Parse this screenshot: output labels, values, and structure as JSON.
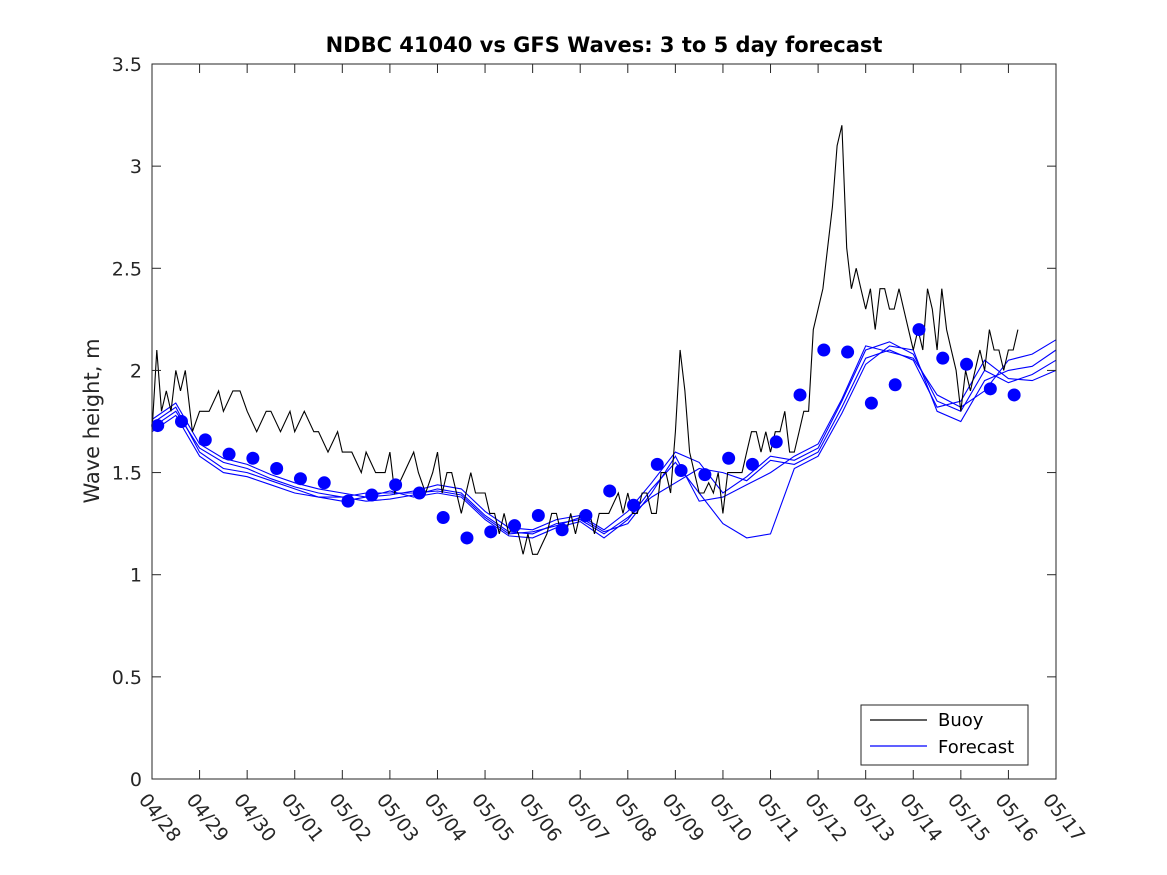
{
  "chart_data": {
    "type": "line",
    "title": "NDBC 41040 vs GFS Waves: 3 to 5 day forecast",
    "ylabel": "Wave height, m",
    "xlabel": "",
    "xlim": [
      0,
      19
    ],
    "ylim": [
      0,
      3.5
    ],
    "x_tick_labels": [
      "04/28",
      "04/29",
      "04/30",
      "05/01",
      "05/02",
      "05/03",
      "05/04",
      "05/05",
      "05/06",
      "05/07",
      "05/08",
      "05/09",
      "05/10",
      "05/11",
      "05/12",
      "05/13",
      "05/14",
      "05/15",
      "05/16",
      "05/17"
    ],
    "y_ticks": [
      0,
      0.5,
      1,
      1.5,
      2,
      2.5,
      3,
      3.5
    ],
    "y_tick_labels": [
      "0",
      "0.5",
      "1",
      "1.5",
      "2",
      "2.5",
      "3",
      "3.5"
    ],
    "grid": false,
    "legend": {
      "position": "bottom-right",
      "entries": [
        "Buoy",
        "Forecast"
      ]
    },
    "colors": {
      "buoy": "#000000",
      "forecast": "#0000ff"
    },
    "series": [
      {
        "name": "Buoy",
        "x": [
          0.0,
          0.1,
          0.2,
          0.3,
          0.4,
          0.5,
          0.6,
          0.7,
          0.85,
          1.0,
          1.2,
          1.4,
          1.5,
          1.7,
          1.85,
          2.0,
          2.2,
          2.4,
          2.5,
          2.7,
          2.9,
          3.0,
          3.2,
          3.4,
          3.5,
          3.7,
          3.9,
          4.0,
          4.2,
          4.4,
          4.5,
          4.7,
          4.9,
          5.0,
          5.1,
          5.3,
          5.5,
          5.6,
          5.75,
          5.9,
          6.0,
          6.1,
          6.2,
          6.3,
          6.5,
          6.6,
          6.7,
          6.8,
          7.0,
          7.1,
          7.2,
          7.3,
          7.4,
          7.5,
          7.6,
          7.7,
          7.8,
          7.9,
          8.0,
          8.1,
          8.2,
          8.3,
          8.4,
          8.5,
          8.6,
          8.7,
          8.8,
          8.9,
          9.0,
          9.2,
          9.3,
          9.4,
          9.5,
          9.6,
          9.8,
          9.9,
          10.0,
          10.1,
          10.2,
          10.3,
          10.4,
          10.5,
          10.6,
          10.7,
          10.8,
          10.9,
          11.0,
          11.1,
          11.2,
          11.3,
          11.4,
          11.5,
          11.6,
          11.7,
          11.8,
          11.9,
          12.0,
          12.1,
          12.2,
          12.3,
          12.4,
          12.5,
          12.6,
          12.7,
          12.8,
          12.9,
          13.0,
          13.1,
          13.2,
          13.3,
          13.4,
          13.5,
          13.6,
          13.7,
          13.8,
          13.9,
          14.0,
          14.1,
          14.2,
          14.3,
          14.4,
          14.5,
          14.6,
          14.7,
          14.8,
          14.9,
          15.0,
          15.1,
          15.2,
          15.3,
          15.4,
          15.5,
          15.6,
          15.7,
          15.8,
          15.9,
          16.0,
          16.1,
          16.2,
          16.3,
          16.4,
          16.5,
          16.6,
          16.7,
          16.8,
          16.9,
          17.0,
          17.1,
          17.2,
          17.3,
          17.4,
          17.5,
          17.6,
          17.7,
          17.8,
          17.9,
          18.0,
          18.1,
          18.2
        ],
        "values": [
          1.7,
          2.1,
          1.8,
          1.9,
          1.8,
          2.0,
          1.9,
          2.0,
          1.7,
          1.8,
          1.8,
          1.9,
          1.8,
          1.9,
          1.9,
          1.8,
          1.7,
          1.8,
          1.8,
          1.7,
          1.8,
          1.7,
          1.8,
          1.7,
          1.7,
          1.6,
          1.7,
          1.6,
          1.6,
          1.5,
          1.6,
          1.5,
          1.5,
          1.6,
          1.4,
          1.5,
          1.6,
          1.5,
          1.4,
          1.5,
          1.6,
          1.4,
          1.5,
          1.5,
          1.3,
          1.4,
          1.5,
          1.4,
          1.4,
          1.3,
          1.3,
          1.2,
          1.3,
          1.2,
          1.25,
          1.2,
          1.1,
          1.2,
          1.1,
          1.1,
          1.15,
          1.2,
          1.3,
          1.3,
          1.2,
          1.2,
          1.3,
          1.2,
          1.3,
          1.3,
          1.2,
          1.3,
          1.3,
          1.3,
          1.4,
          1.3,
          1.4,
          1.3,
          1.3,
          1.4,
          1.4,
          1.3,
          1.3,
          1.5,
          1.5,
          1.4,
          1.7,
          2.1,
          1.9,
          1.6,
          1.5,
          1.4,
          1.4,
          1.45,
          1.4,
          1.5,
          1.3,
          1.5,
          1.5,
          1.5,
          1.5,
          1.6,
          1.7,
          1.7,
          1.6,
          1.7,
          1.6,
          1.7,
          1.7,
          1.8,
          1.6,
          1.6,
          1.7,
          1.8,
          1.8,
          2.2,
          2.3,
          2.4,
          2.6,
          2.8,
          3.1,
          3.2,
          2.6,
          2.4,
          2.5,
          2.4,
          2.3,
          2.4,
          2.2,
          2.4,
          2.4,
          2.3,
          2.3,
          2.4,
          2.3,
          2.2,
          2.1,
          2.2,
          2.1,
          2.4,
          2.3,
          2.1,
          2.4,
          2.2,
          2.1,
          2.0,
          1.8,
          2.0,
          1.9,
          2.0,
          2.1,
          2.0,
          2.2,
          2.1,
          2.1,
          2.0,
          2.1,
          2.1,
          2.2
        ]
      },
      {
        "name": "Forecast",
        "x": [
          0.0,
          0.5,
          1.0,
          1.5,
          2.0,
          2.5,
          3.0,
          3.5,
          4.0,
          4.5,
          5.0,
          5.5,
          6.0,
          6.5,
          7.0,
          7.5,
          8.0,
          8.5,
          9.0,
          9.5,
          10.0,
          10.5,
          11.0,
          11.5,
          12.0,
          12.5,
          13.0,
          13.5,
          14.0,
          14.5,
          15.0,
          15.5,
          16.0,
          16.5,
          17.0,
          17.5,
          18.0,
          18.5,
          19.0
        ],
        "values": [
          1.72,
          1.8,
          1.62,
          1.55,
          1.52,
          1.47,
          1.43,
          1.4,
          1.38,
          1.36,
          1.37,
          1.39,
          1.42,
          1.4,
          1.29,
          1.21,
          1.2,
          1.25,
          1.27,
          1.2,
          1.28,
          1.38,
          1.45,
          1.52,
          1.5,
          1.46,
          1.56,
          1.54,
          1.6,
          1.82,
          2.06,
          2.1,
          2.05,
          1.82,
          1.85,
          2.05,
          1.96,
          1.95,
          2.0
        ]
      },
      {
        "name": "",
        "x": [
          0.0,
          0.5,
          1.0,
          1.5,
          2.0,
          2.5,
          3.0,
          3.5,
          4.0,
          4.5,
          5.0,
          5.5,
          6.0,
          6.5,
          7.0,
          7.5,
          8.0,
          8.5,
          9.0,
          9.5,
          10.0,
          10.5,
          11.0,
          11.5,
          12.0,
          12.5,
          13.0,
          13.5,
          14.0,
          14.5,
          15.0,
          15.5,
          16.0,
          16.5,
          17.0,
          17.5,
          18.0,
          18.5,
          19.0
        ],
        "values": [
          1.76,
          1.84,
          1.64,
          1.57,
          1.54,
          1.49,
          1.45,
          1.42,
          1.4,
          1.38,
          1.39,
          1.41,
          1.44,
          1.42,
          1.31,
          1.23,
          1.22,
          1.27,
          1.29,
          1.22,
          1.31,
          1.45,
          1.6,
          1.55,
          1.4,
          1.48,
          1.58,
          1.56,
          1.62,
          1.85,
          2.1,
          2.14,
          2.08,
          1.85,
          1.8,
          2.0,
          1.94,
          1.98,
          2.05
        ]
      },
      {
        "name": "",
        "x": [
          0.0,
          0.5,
          1.0,
          1.5,
          2.0,
          2.5,
          3.0,
          3.5,
          4.0,
          4.5,
          5.0,
          5.5,
          6.0,
          6.5,
          7.0,
          7.5,
          8.0,
          8.5,
          9.0,
          9.5,
          10.0,
          10.5,
          11.0,
          11.5,
          12.0,
          12.5,
          13.0,
          13.5,
          14.0,
          14.5,
          15.0,
          15.5,
          16.0,
          16.5,
          17.0,
          17.5,
          18.0,
          18.5,
          19.0
        ],
        "values": [
          1.74,
          1.82,
          1.6,
          1.52,
          1.5,
          1.46,
          1.42,
          1.38,
          1.36,
          1.38,
          1.41,
          1.38,
          1.4,
          1.38,
          1.27,
          1.19,
          1.18,
          1.23,
          1.26,
          1.18,
          1.27,
          1.42,
          1.55,
          1.4,
          1.25,
          1.18,
          1.2,
          1.52,
          1.58,
          1.79,
          2.03,
          2.12,
          2.1,
          1.8,
          1.75,
          1.95,
          2.0,
          2.02,
          2.1
        ]
      },
      {
        "name": "",
        "x": [
          0.0,
          0.5,
          1.0,
          1.5,
          2.0,
          2.5,
          3.0,
          3.5,
          4.0,
          4.5,
          5.0,
          5.5,
          6.0,
          6.5,
          7.0,
          7.5,
          8.0,
          8.5,
          9.0,
          9.5,
          10.0,
          10.5,
          11.0,
          11.5,
          12.0,
          12.5,
          13.0,
          13.5,
          14.0,
          14.5,
          15.0,
          15.5,
          16.0,
          16.5,
          17.0,
          17.5,
          18.0,
          18.5,
          19.0
        ],
        "values": [
          1.7,
          1.78,
          1.58,
          1.5,
          1.48,
          1.44,
          1.4,
          1.38,
          1.38,
          1.4,
          1.4,
          1.4,
          1.41,
          1.39,
          1.28,
          1.2,
          1.21,
          1.24,
          1.28,
          1.21,
          1.25,
          1.4,
          1.58,
          1.36,
          1.38,
          1.44,
          1.5,
          1.58,
          1.64,
          1.86,
          2.12,
          2.09,
          2.06,
          1.88,
          1.82,
          1.9,
          2.05,
          2.08,
          2.15
        ]
      }
    ],
    "markers": {
      "name": "Forecast points",
      "x": [
        0.12,
        0.62,
        1.12,
        1.62,
        2.12,
        2.62,
        3.12,
        3.62,
        4.12,
        4.62,
        5.12,
        5.62,
        6.12,
        6.62,
        7.12,
        7.62,
        8.12,
        8.62,
        9.12,
        9.62,
        10.12,
        10.62,
        11.12,
        11.62,
        12.12,
        12.62,
        13.12,
        13.62,
        14.12,
        14.62,
        15.12,
        15.62,
        16.12,
        16.62,
        17.12,
        17.62,
        18.12
      ],
      "values": [
        1.73,
        1.75,
        1.66,
        1.59,
        1.57,
        1.52,
        1.47,
        1.45,
        1.36,
        1.39,
        1.44,
        1.4,
        1.28,
        1.18,
        1.21,
        1.24,
        1.29,
        1.22,
        1.29,
        1.41,
        1.34,
        1.54,
        1.51,
        1.49,
        1.57,
        1.54,
        1.65,
        1.88,
        2.1,
        2.09,
        1.84,
        1.93,
        2.2,
        2.06,
        2.03,
        1.91,
        1.88
      ]
    }
  }
}
